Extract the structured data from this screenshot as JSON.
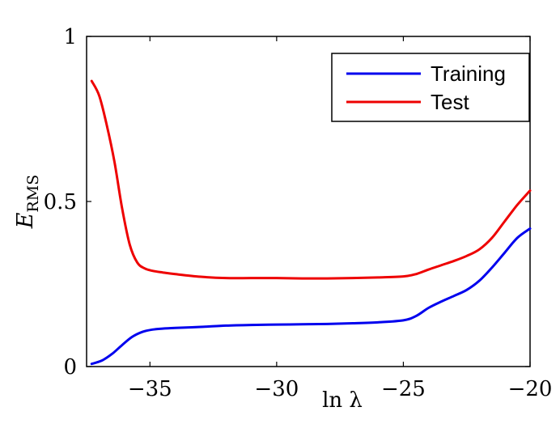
{
  "chart_data": {
    "type": "line",
    "title": "",
    "xlabel": "ln λ",
    "ylabel": "E",
    "ylabel_subscript": "RMS",
    "xlim": [
      -37.5,
      -20
    ],
    "ylim": [
      0,
      1
    ],
    "xticks": [
      -35,
      -30,
      -25,
      -20
    ],
    "xtick_labels": [
      "−35",
      "−30",
      "−25",
      "−20"
    ],
    "yticks": [
      0,
      0.5,
      1
    ],
    "ytick_labels": [
      "0",
      "0.5",
      "1"
    ],
    "legend_position": "top-right",
    "grid": false,
    "series": [
      {
        "name": "Training",
        "color": "#0000ee",
        "x": [
          -37.3,
          -36.9,
          -36.5,
          -36.1,
          -35.7,
          -35.3,
          -34.9,
          -34.5,
          -34,
          -33,
          -32,
          -31,
          -30,
          -29,
          -28,
          -27,
          -26,
          -25,
          -24.5,
          -24,
          -23.5,
          -23,
          -22.5,
          -22,
          -21.5,
          -21,
          -20.5,
          -20
        ],
        "y": [
          0.008,
          0.018,
          0.038,
          0.065,
          0.09,
          0.105,
          0.112,
          0.115,
          0.117,
          0.12,
          0.124,
          0.126,
          0.127,
          0.128,
          0.129,
          0.131,
          0.134,
          0.14,
          0.153,
          0.178,
          0.197,
          0.214,
          0.232,
          0.26,
          0.3,
          0.345,
          0.39,
          0.418
        ]
      },
      {
        "name": "Test",
        "color": "#ee0000",
        "x": [
          -37.3,
          -37,
          -36.7,
          -36.4,
          -36.1,
          -35.8,
          -35.5,
          -35.2,
          -34.9,
          -34.5,
          -34,
          -33,
          -32,
          -31,
          -30,
          -29,
          -28,
          -27,
          -26,
          -25,
          -24.5,
          -24,
          -23.5,
          -23,
          -22.5,
          -22,
          -21.5,
          -21,
          -20.5,
          -20
        ],
        "y": [
          0.865,
          0.82,
          0.73,
          0.62,
          0.48,
          0.37,
          0.315,
          0.297,
          0.29,
          0.285,
          0.28,
          0.272,
          0.268,
          0.268,
          0.268,
          0.267,
          0.267,
          0.268,
          0.27,
          0.273,
          0.28,
          0.294,
          0.307,
          0.32,
          0.335,
          0.355,
          0.39,
          0.44,
          0.49,
          0.533
        ]
      }
    ]
  }
}
